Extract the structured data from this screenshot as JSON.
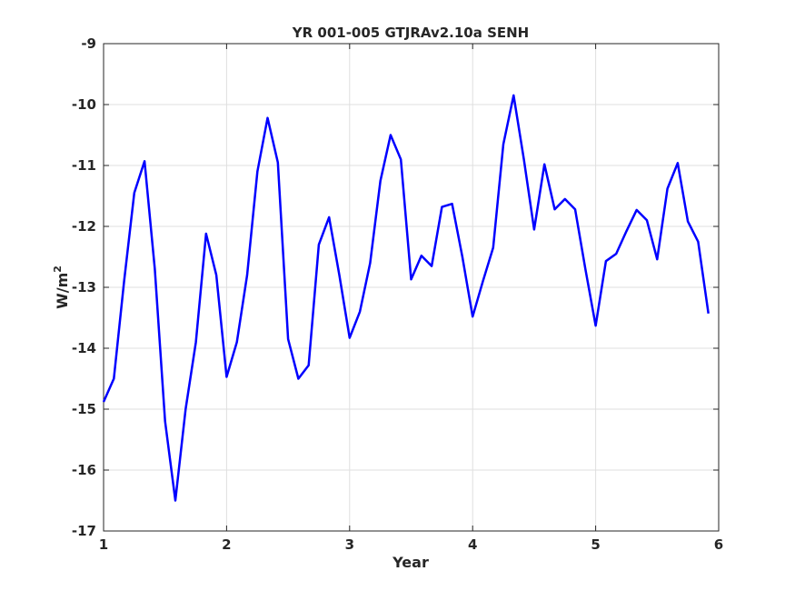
{
  "chart_data": {
    "type": "line",
    "title": "YR 001-005 GTJRAv2.10a SENH",
    "xlabel": "Year",
    "ylabel_base": "W/m",
    "ylabel_sup": "2",
    "xlim": [
      1,
      6
    ],
    "ylim": [
      -17,
      -9
    ],
    "xticks": [
      1,
      2,
      3,
      4,
      5,
      6
    ],
    "yticks": [
      -9,
      -10,
      -11,
      -12,
      -13,
      -14,
      -15,
      -16,
      -17
    ],
    "grid": true,
    "line_color": "#0000ff",
    "series": [
      {
        "x": [
          1.0,
          1.0833,
          1.1667,
          1.25,
          1.3333,
          1.4167,
          1.5,
          1.5833,
          1.6667,
          1.75,
          1.8333,
          1.9167,
          2.0,
          2.0833,
          2.1667,
          2.25,
          2.3333,
          2.4167,
          2.5,
          2.5833,
          2.6667,
          2.75,
          2.8333,
          2.9167,
          3.0,
          3.0833,
          3.1667,
          3.25,
          3.3333,
          3.4167,
          3.5,
          3.5833,
          3.6667,
          3.75,
          3.8333,
          3.9167,
          4.0,
          4.0833,
          4.1667,
          4.25,
          4.3333,
          4.4167,
          4.5,
          4.5833,
          4.6667,
          4.75,
          4.8333,
          4.9167,
          5.0,
          5.0833,
          5.1667,
          5.25,
          5.3333,
          5.4167,
          5.5,
          5.5833,
          5.6667,
          5.75,
          5.8333,
          5.9167
        ],
        "values": [
          -14.88,
          -14.5,
          -12.9,
          -11.45,
          -10.93,
          -12.7,
          -15.2,
          -16.5,
          -15.0,
          -13.9,
          -12.12,
          -12.8,
          -14.47,
          -13.9,
          -12.8,
          -11.1,
          -10.22,
          -10.95,
          -13.85,
          -14.5,
          -14.28,
          -12.3,
          -11.85,
          -12.8,
          -13.83,
          -13.4,
          -12.6,
          -11.25,
          -10.5,
          -10.9,
          -12.87,
          -12.48,
          -12.65,
          -11.68,
          -11.63,
          -12.5,
          -13.48,
          -12.9,
          -12.35,
          -10.65,
          -9.85,
          -10.9,
          -12.05,
          -10.98,
          -11.72,
          -11.55,
          -11.72,
          -12.7,
          -13.63,
          -12.57,
          -12.45,
          -12.08,
          -11.73,
          -11.9,
          -12.54,
          -11.38,
          -10.96,
          -11.92,
          -12.25,
          -13.43
        ]
      }
    ]
  }
}
